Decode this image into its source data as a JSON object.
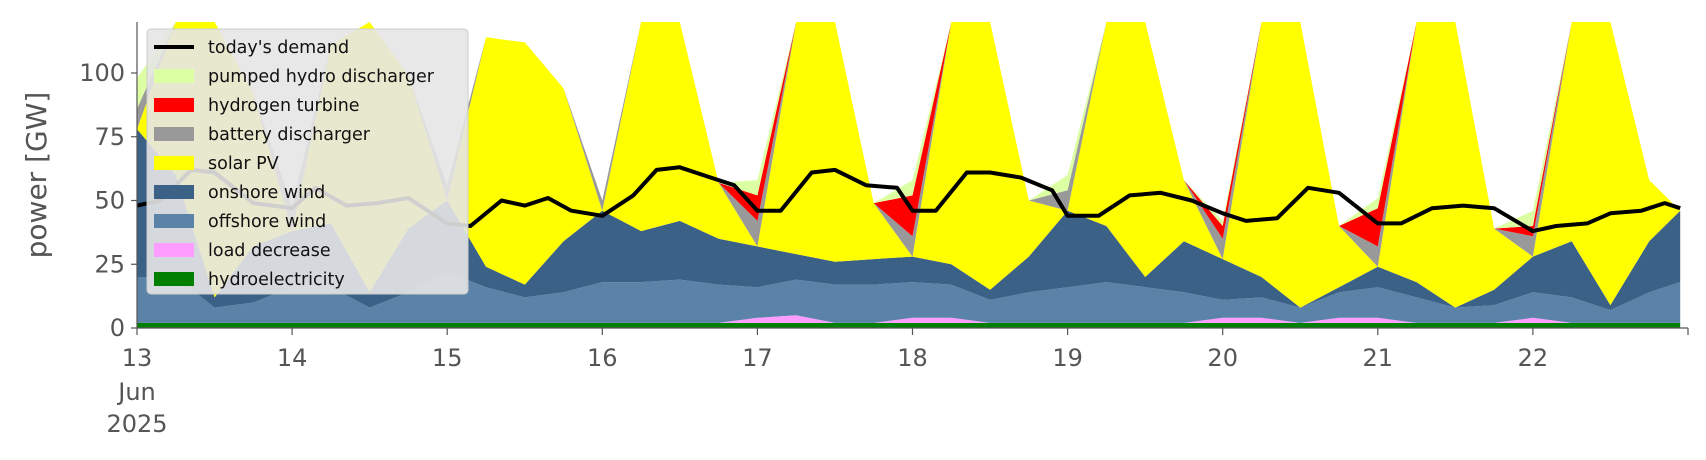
{
  "chart_data": {
    "type": "area",
    "title": "",
    "xlabel": "",
    "ylabel": "power [GW]",
    "ylim": [
      0,
      120
    ],
    "yticks": [
      0,
      25,
      50,
      75,
      100
    ],
    "x_range": [
      "2025-06-13",
      "2025-06-23"
    ],
    "x_tick_labels": [
      {
        "day": 13,
        "label": "13"
      },
      {
        "day": 14,
        "label": "14"
      },
      {
        "day": 15,
        "label": "15"
      },
      {
        "day": 16,
        "label": "16"
      },
      {
        "day": 17,
        "label": "17"
      },
      {
        "day": 18,
        "label": "18"
      },
      {
        "day": 19,
        "label": "19"
      },
      {
        "day": 20,
        "label": "20"
      },
      {
        "day": 21,
        "label": "21"
      },
      {
        "day": 22,
        "label": "22"
      }
    ],
    "x_tick_sub": [
      "Jun",
      "2025"
    ],
    "grid": false,
    "legend_position": "top-left",
    "x_days": [
      13.0,
      13.25,
      13.5,
      13.75,
      14.0,
      14.25,
      14.5,
      14.75,
      15.0,
      15.25,
      15.5,
      15.75,
      16.0,
      16.25,
      16.5,
      16.75,
      17.0,
      17.25,
      17.5,
      17.75,
      18.0,
      18.25,
      18.5,
      18.75,
      19.0,
      19.25,
      19.5,
      19.75,
      20.0,
      20.25,
      20.5,
      20.75,
      21.0,
      21.25,
      21.5,
      21.75,
      22.0,
      22.25,
      22.5,
      22.75,
      22.95
    ],
    "series": [
      {
        "name": "hydroelectricity",
        "color": "#008000",
        "values": [
          2,
          2,
          2,
          2,
          2,
          2,
          2,
          2,
          2,
          2,
          2,
          2,
          2,
          2,
          2,
          2,
          2,
          2,
          2,
          2,
          2,
          2,
          2,
          2,
          2,
          2,
          2,
          2,
          2,
          2,
          2,
          2,
          2,
          2,
          2,
          2,
          2,
          2,
          2,
          2,
          2
        ]
      },
      {
        "name": "load decrease",
        "color": "#ff9cff",
        "values": [
          0,
          0,
          0,
          0,
          0,
          0,
          0,
          0,
          0,
          0,
          0,
          0,
          0,
          0,
          0,
          0,
          2,
          3,
          0,
          0,
          2,
          2,
          0,
          0,
          0,
          0,
          0,
          0,
          2,
          2,
          0,
          2,
          2,
          0,
          0,
          0,
          2,
          0,
          0,
          0,
          0
        ]
      },
      {
        "name": "offshore wind",
        "color": "#5b83a8",
        "values": [
          18,
          18,
          6,
          8,
          14,
          14,
          6,
          12,
          20,
          14,
          10,
          12,
          16,
          16,
          17,
          15,
          12,
          14,
          15,
          15,
          14,
          13,
          9,
          12,
          14,
          16,
          14,
          12,
          7,
          8,
          6,
          10,
          12,
          10,
          6,
          7,
          10,
          10,
          5,
          12,
          16
        ]
      },
      {
        "name": "onshore wind",
        "color": "#3c6186",
        "values": [
          58,
          40,
          4,
          22,
          22,
          25,
          6,
          25,
          28,
          8,
          5,
          20,
          28,
          20,
          23,
          18,
          16,
          10,
          9,
          10,
          10,
          8,
          4,
          14,
          30,
          22,
          4,
          20,
          16,
          8,
          0,
          2,
          8,
          6,
          0,
          6,
          14,
          22,
          2,
          20,
          28
        ]
      },
      {
        "name": "solar PV",
        "color": "#ffff00",
        "values": [
          0,
          70,
          120,
          60,
          0,
          70,
          120,
          60,
          0,
          90,
          95,
          60,
          0,
          120,
          120,
          22,
          0,
          120,
          120,
          22,
          0,
          120,
          120,
          22,
          0,
          120,
          120,
          24,
          0,
          120,
          120,
          24,
          0,
          120,
          120,
          24,
          0,
          120,
          120,
          24,
          0
        ]
      },
      {
        "name": "battery discharger",
        "color": "#999999",
        "values": [
          8,
          0,
          0,
          0,
          10,
          0,
          0,
          0,
          6,
          0,
          0,
          0,
          4,
          0,
          0,
          0,
          10,
          0,
          0,
          0,
          8,
          0,
          0,
          0,
          8,
          0,
          0,
          0,
          8,
          0,
          0,
          0,
          8,
          0,
          0,
          0,
          8,
          0,
          0,
          0,
          0
        ]
      },
      {
        "name": "hydrogen turbine",
        "color": "#ff0000",
        "values": [
          0,
          0,
          0,
          0,
          0,
          0,
          0,
          0,
          0,
          0,
          0,
          0,
          0,
          0,
          0,
          0,
          10,
          0,
          0,
          0,
          16,
          0,
          0,
          0,
          0,
          0,
          0,
          0,
          5,
          0,
          0,
          0,
          15,
          0,
          0,
          0,
          4,
          0,
          0,
          0,
          0
        ]
      },
      {
        "name": "pumped hydro discharger",
        "color": "#dcffa4",
        "values": [
          12,
          0,
          0,
          0,
          0,
          0,
          0,
          0,
          0,
          0,
          0,
          0,
          0,
          0,
          0,
          0,
          6,
          0,
          0,
          0,
          6,
          0,
          0,
          0,
          6,
          0,
          0,
          0,
          2,
          0,
          0,
          0,
          4,
          0,
          0,
          0,
          6,
          0,
          0,
          0,
          0
        ]
      }
    ],
    "demand": {
      "name": "today's demand",
      "color": "#000000",
      "x_days": [
        13.0,
        13.15,
        13.35,
        13.5,
        13.75,
        14.0,
        14.15,
        14.35,
        14.55,
        14.75,
        15.0,
        15.15,
        15.35,
        15.5,
        15.65,
        15.8,
        16.0,
        16.2,
        16.35,
        16.5,
        16.7,
        16.85,
        17.0,
        17.15,
        17.35,
        17.5,
        17.7,
        17.9,
        18.0,
        18.15,
        18.35,
        18.5,
        18.7,
        18.9,
        19.0,
        19.2,
        19.4,
        19.6,
        19.8,
        20.0,
        20.15,
        20.35,
        20.55,
        20.75,
        21.0,
        21.15,
        21.35,
        21.55,
        21.75,
        22.0,
        22.15,
        22.35,
        22.5,
        22.7,
        22.85,
        22.95
      ],
      "values": [
        48,
        50,
        62,
        61,
        49,
        47,
        55,
        48,
        49,
        51,
        41,
        40,
        50,
        48,
        51,
        46,
        44,
        52,
        62,
        63,
        59,
        56,
        46,
        46,
        61,
        62,
        56,
        55,
        46,
        46,
        61,
        61,
        59,
        54,
        44,
        44,
        52,
        53,
        50,
        45,
        42,
        43,
        55,
        53,
        41,
        41,
        47,
        48,
        47,
        38,
        40,
        41,
        45,
        46,
        49,
        47
      ]
    },
    "legend": [
      "today's demand",
      "pumped hydro discharger",
      "hydrogen turbine",
      "battery discharger",
      "solar PV",
      "onshore wind",
      "offshore wind",
      "load decrease",
      "hydroelectricity"
    ]
  }
}
